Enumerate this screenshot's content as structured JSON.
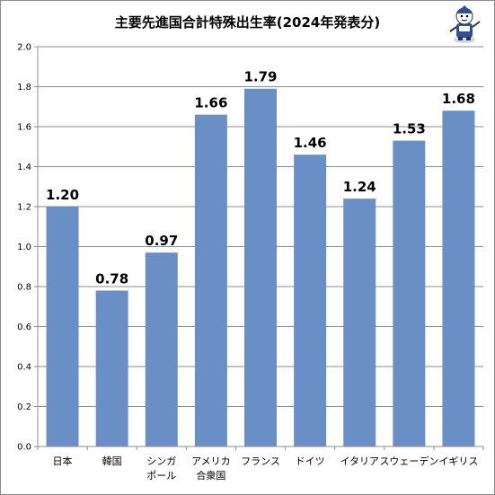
{
  "chart_data": {
    "type": "bar",
    "title": "主要先進国合計特殊出生率(2024年発表分)",
    "categories": [
      [
        "日本"
      ],
      [
        "韓国"
      ],
      [
        "シンガ",
        "ポール"
      ],
      [
        "アメリカ",
        "合衆国"
      ],
      [
        "フランス"
      ],
      [
        "ドイツ"
      ],
      [
        "イタリア"
      ],
      [
        "スウェーデン"
      ],
      [
        "イギリス"
      ]
    ],
    "values": [
      1.2,
      0.78,
      0.97,
      1.66,
      1.79,
      1.46,
      1.24,
      1.53,
      1.68
    ],
    "value_labels": [
      "1.20",
      "0.78",
      "0.97",
      "1.66",
      "1.79",
      "1.46",
      "1.24",
      "1.53",
      "1.68"
    ],
    "ylim": [
      0,
      2.0
    ],
    "yticks": [
      "0.0",
      "0.2",
      "0.4",
      "0.6",
      "0.8",
      "1.0",
      "1.2",
      "1.4",
      "1.6",
      "1.8",
      "2.0"
    ],
    "grid": true,
    "legend": "none",
    "bar_color": "#6a8fc7",
    "grid_color": "#8c8c8c"
  },
  "mascot": {
    "icon": "mascot-character-icon"
  }
}
